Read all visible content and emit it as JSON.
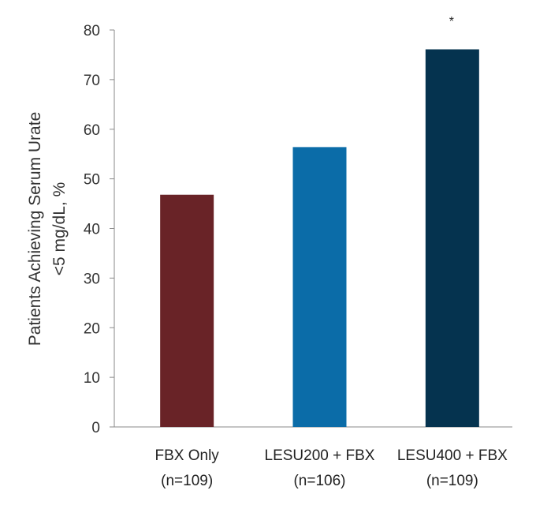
{
  "chart_data": {
    "type": "bar",
    "title": "",
    "xlabel": "",
    "ylabel_lines": [
      "Patients Achieving Serum Urate",
      "<5 mg/dL, %"
    ],
    "ylim": [
      0,
      80
    ],
    "yticks": [
      0,
      10,
      20,
      30,
      40,
      50,
      60,
      70,
      80
    ],
    "grid": false,
    "categories": [
      {
        "lines": [
          "FBX Only",
          "(n=109)"
        ]
      },
      {
        "lines": [
          "LESU200 + FBX",
          "(n=106)"
        ]
      },
      {
        "lines": [
          "LESU400 + FBX",
          "(n=109)"
        ]
      }
    ],
    "values": [
      46.8,
      56.4,
      76.1
    ],
    "colors": [
      "#692327",
      "#0b6ca8",
      "#05334f"
    ],
    "annotations": [
      {
        "category_index": 2,
        "text": "*"
      }
    ]
  }
}
